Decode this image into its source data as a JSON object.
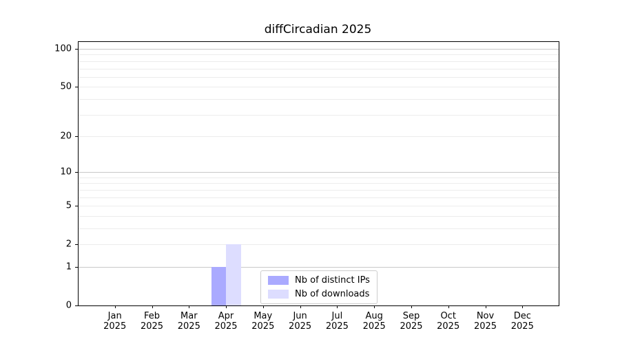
{
  "title": "diffCircadian 2025",
  "legend": {
    "items": [
      {
        "label": "Nb of distinct IPs",
        "color": "#aaaaff"
      },
      {
        "label": "Nb of downloads",
        "color": "#ddddff"
      }
    ]
  },
  "chart_data": {
    "type": "bar",
    "title": "diffCircadian 2025",
    "x": {
      "categories": [
        "Jan",
        "Feb",
        "Mar",
        "Apr",
        "May",
        "Jun",
        "Jul",
        "Aug",
        "Sep",
        "Oct",
        "Nov",
        "Dec"
      ],
      "year": "2025"
    },
    "series": [
      {
        "name": "Nb of distinct IPs",
        "color": "#aaaaff",
        "values": [
          0,
          0,
          0,
          1,
          0,
          0,
          0,
          0,
          0,
          0,
          0,
          0
        ]
      },
      {
        "name": "Nb of downloads",
        "color": "#ddddff",
        "values": [
          0,
          0,
          0,
          2,
          0,
          0,
          0,
          0,
          0,
          0,
          0,
          0
        ]
      }
    ],
    "y": {
      "scale": "log1p",
      "tick_values": [
        0,
        1,
        2,
        5,
        10,
        20,
        50,
        100
      ],
      "tick_labels": [
        "0",
        "1",
        "2",
        "5",
        "10",
        "20",
        "50",
        "100"
      ],
      "major_grid_values": [
        1,
        10,
        100
      ],
      "minor_grid_values": [
        2,
        3,
        4,
        5,
        6,
        7,
        8,
        9,
        20,
        30,
        40,
        50,
        60,
        70,
        80,
        90
      ],
      "ylim": [
        0,
        113
      ]
    },
    "grid": true,
    "legend_position": "lower center",
    "colors": {
      "major_grid": "#c8c8c8",
      "minor_grid": "#ececec",
      "spine": "#000000",
      "text": "#000000",
      "background": "#ffffff"
    }
  }
}
